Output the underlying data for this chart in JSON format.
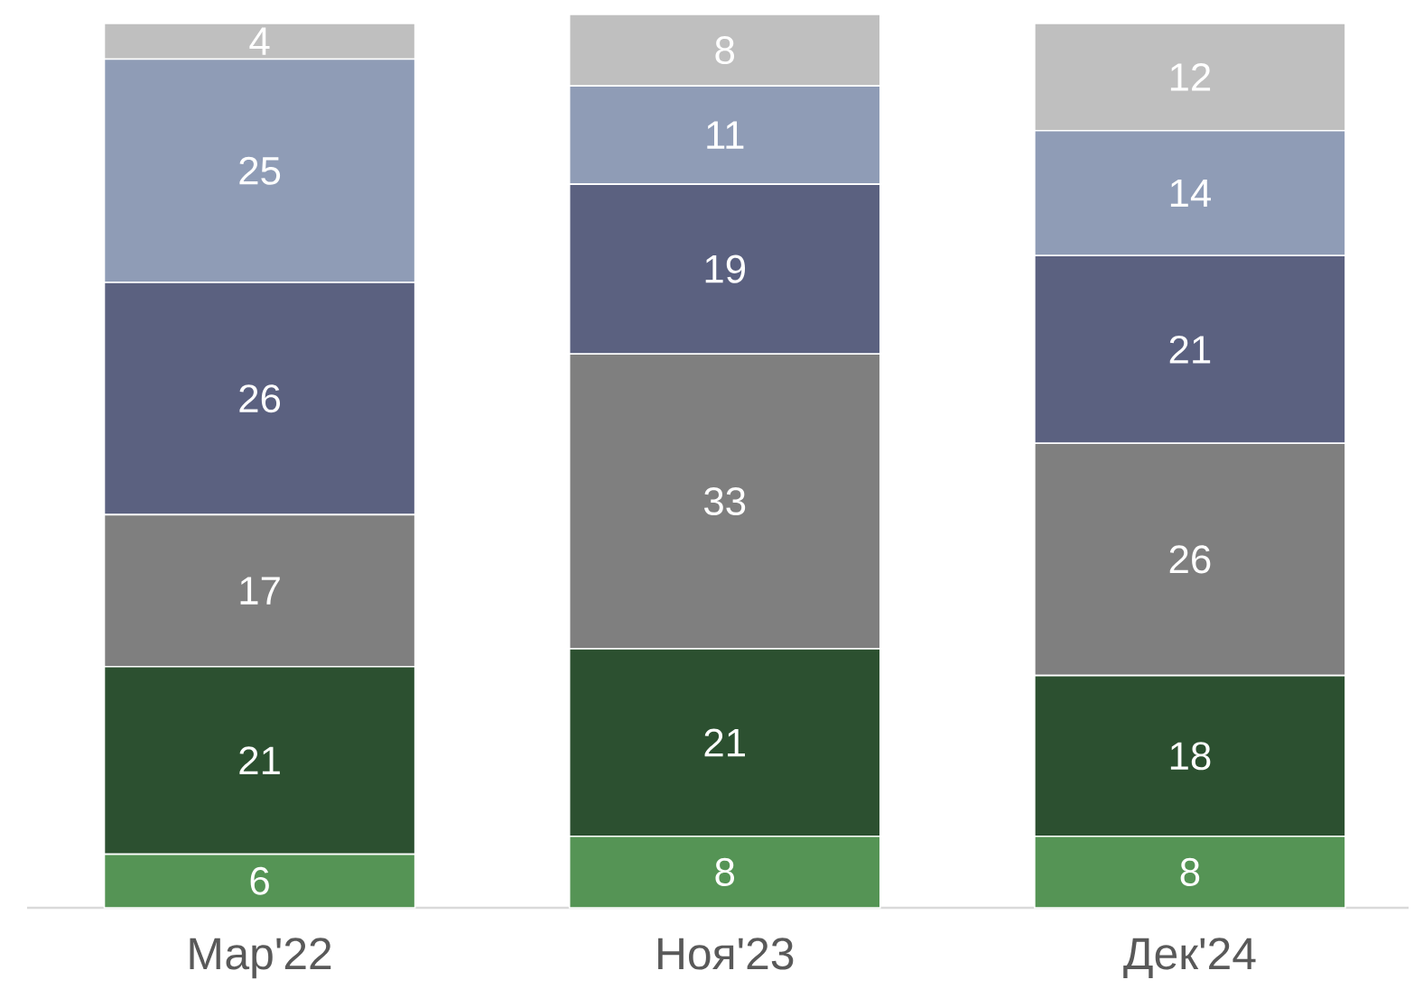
{
  "chart_data": {
    "type": "bar",
    "stacked": true,
    "data_labels": true,
    "categories": [
      "Мар'22",
      "Ноя'23",
      "Дек'24"
    ],
    "series": [
      {
        "color": "#559455",
        "values": [
          6,
          8,
          8
        ]
      },
      {
        "color": "#2c5030",
        "values": [
          21,
          21,
          18
        ]
      },
      {
        "color": "#7f7f7f",
        "values": [
          17,
          33,
          26
        ]
      },
      {
        "color": "#5b6180",
        "values": [
          26,
          19,
          21
        ]
      },
      {
        "color": "#8f9cb6",
        "values": [
          25,
          11,
          14
        ]
      },
      {
        "color": "#bfbfbf",
        "values": [
          4,
          8,
          12
        ]
      }
    ]
  }
}
